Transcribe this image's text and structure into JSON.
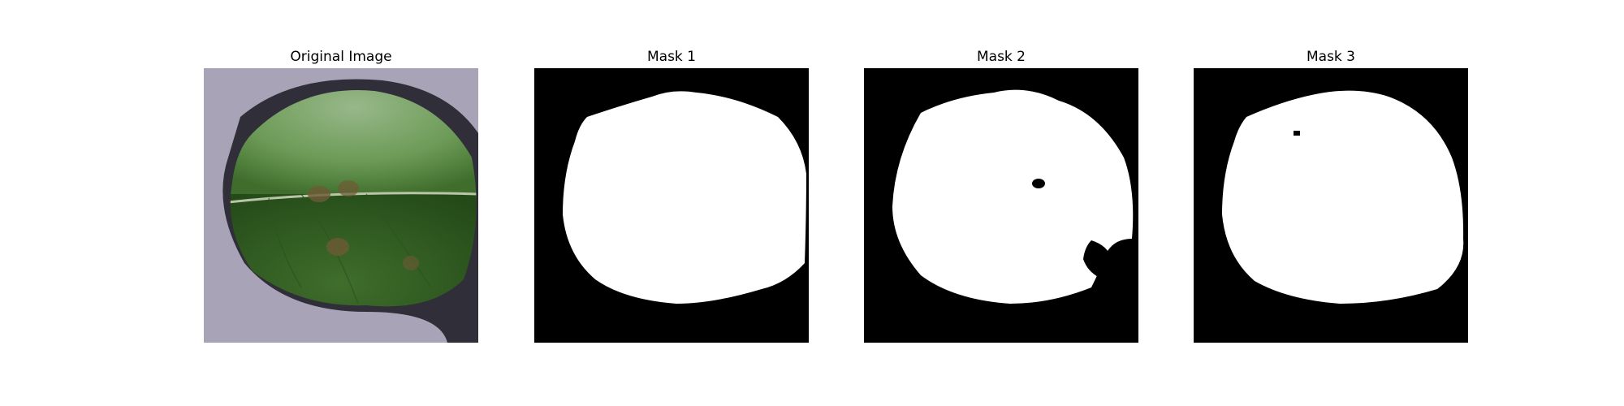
{
  "figure": {
    "panels": [
      {
        "title": "Original Image",
        "kind": "photo"
      },
      {
        "title": "Mask 1",
        "kind": "mask"
      },
      {
        "title": "Mask 2",
        "kind": "mask"
      },
      {
        "title": "Mask 3",
        "kind": "mask"
      }
    ]
  },
  "colors": {
    "background": "#a9a3b7",
    "leaf_light": "#6c9a56",
    "leaf_dark": "#2f5a1f",
    "lesion": "#6e5a36",
    "shadow": "#1b1a23",
    "mask_bg": "#000000",
    "mask_fg": "#ffffff"
  },
  "subject": {
    "description_icon": "leaf-photo-icon"
  }
}
